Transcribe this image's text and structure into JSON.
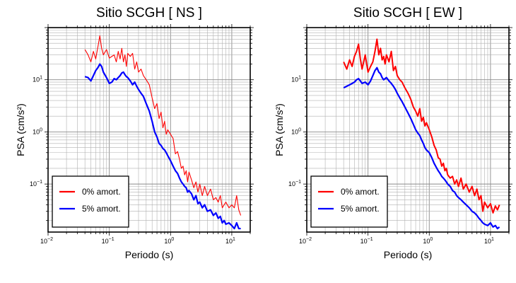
{
  "chart_data": [
    {
      "type": "line",
      "title": "Sitio SCGH [ NS ]",
      "xlabel": "Periodo (s)",
      "ylabel": "PSA (cm/s²)",
      "xscale": "log",
      "yscale": "log",
      "xlim": [
        0.01,
        20
      ],
      "ylim": [
        0.012,
        100
      ],
      "x_ticks": [
        {
          "base": "10",
          "exp": "−2"
        },
        {
          "base": "10",
          "exp": "−1"
        },
        {
          "base": "10",
          "exp": "0"
        },
        {
          "base": "10",
          "exp": "1"
        }
      ],
      "y_ticks": [
        {
          "base": "10",
          "exp": "−1"
        },
        {
          "base": "10",
          "exp": "0"
        },
        {
          "base": "10",
          "exp": "1"
        }
      ],
      "grid": true,
      "legend_position": "bottom-left",
      "series": [
        {
          "name": "0% amort.",
          "color": "#ff0000",
          "x": [
            0.04,
            0.045,
            0.05,
            0.055,
            0.06,
            0.065,
            0.07,
            0.075,
            0.08,
            0.09,
            0.1,
            0.11,
            0.12,
            0.13,
            0.14,
            0.15,
            0.16,
            0.17,
            0.18,
            0.19,
            0.2,
            0.22,
            0.24,
            0.26,
            0.28,
            0.3,
            0.33,
            0.36,
            0.4,
            0.45,
            0.5,
            0.55,
            0.6,
            0.65,
            0.7,
            0.75,
            0.8,
            0.85,
            0.9,
            1.0,
            1.1,
            1.2,
            1.3,
            1.4,
            1.5,
            1.6,
            1.7,
            1.8,
            1.9,
            2.0,
            2.2,
            2.4,
            2.6,
            2.8,
            3.0,
            3.3,
            3.6,
            4.0,
            4.5,
            5.0,
            5.5,
            6.0,
            6.5,
            7.0,
            7.5,
            8.0,
            9.0,
            10.0,
            11.0,
            12.0,
            13.0,
            14.0
          ],
          "values": [
            38,
            30,
            22,
            35,
            25,
            42,
            70,
            40,
            30,
            38,
            26,
            28,
            30,
            22,
            35,
            25,
            40,
            22,
            30,
            18,
            32,
            28,
            32,
            16,
            22,
            14,
            16,
            12,
            10,
            8,
            4.5,
            2.8,
            3.5,
            1.8,
            2.4,
            1.2,
            1.6,
            0.9,
            1.1,
            0.9,
            0.75,
            0.38,
            0.42,
            0.3,
            0.2,
            0.22,
            0.15,
            0.18,
            0.11,
            0.17,
            0.12,
            0.085,
            0.11,
            0.07,
            0.1,
            0.06,
            0.09,
            0.06,
            0.08,
            0.05,
            0.055,
            0.045,
            0.06,
            0.035,
            0.04,
            0.045,
            0.035,
            0.04,
            0.035,
            0.06,
            0.032,
            0.025
          ]
        },
        {
          "name": "5% amort.",
          "color": "#0000ff",
          "x": [
            0.04,
            0.045,
            0.05,
            0.055,
            0.06,
            0.065,
            0.07,
            0.075,
            0.08,
            0.09,
            0.1,
            0.11,
            0.12,
            0.13,
            0.14,
            0.15,
            0.16,
            0.17,
            0.18,
            0.19,
            0.2,
            0.22,
            0.24,
            0.26,
            0.28,
            0.3,
            0.33,
            0.36,
            0.4,
            0.45,
            0.5,
            0.55,
            0.6,
            0.65,
            0.7,
            0.75,
            0.8,
            0.85,
            0.9,
            1.0,
            1.1,
            1.2,
            1.3,
            1.4,
            1.5,
            1.6,
            1.7,
            1.8,
            1.9,
            2.0,
            2.2,
            2.4,
            2.6,
            2.8,
            3.0,
            3.3,
            3.6,
            4.0,
            4.5,
            5.0,
            5.5,
            6.0,
            6.5,
            7.0,
            7.5,
            8.0,
            9.0,
            10.0,
            11.0,
            12.0,
            13.0,
            14.0
          ],
          "values": [
            11.5,
            11,
            9.5,
            12,
            15,
            17,
            20,
            18,
            14,
            11,
            8.5,
            9,
            10.5,
            10,
            11,
            12,
            13.5,
            14,
            12.5,
            11.5,
            11,
            9.5,
            8,
            9,
            7.5,
            6.5,
            5.5,
            4.8,
            3.5,
            2.5,
            1.6,
            1.0,
            0.8,
            0.6,
            0.55,
            0.48,
            0.45,
            0.4,
            0.35,
            0.28,
            0.22,
            0.18,
            0.16,
            0.13,
            0.11,
            0.1,
            0.09,
            0.085,
            0.07,
            0.075,
            0.065,
            0.05,
            0.06,
            0.042,
            0.045,
            0.035,
            0.04,
            0.03,
            0.032,
            0.025,
            0.028,
            0.022,
            0.024,
            0.018,
            0.02,
            0.017,
            0.018,
            0.016,
            0.014,
            0.018,
            0.014,
            0.014
          ]
        }
      ]
    },
    {
      "type": "line",
      "title": "Sitio SCGH [ EW ]",
      "xlabel": "Periodo (s)",
      "ylabel": "PSA (cm/s²)",
      "xscale": "log",
      "yscale": "log",
      "xlim": [
        0.01,
        20
      ],
      "ylim": [
        0.012,
        100
      ],
      "x_ticks": [
        {
          "base": "10",
          "exp": "−2"
        },
        {
          "base": "10",
          "exp": "−1"
        },
        {
          "base": "10",
          "exp": "0"
        },
        {
          "base": "10",
          "exp": "1"
        }
      ],
      "y_ticks": [
        {
          "base": "10",
          "exp": "−1"
        },
        {
          "base": "10",
          "exp": "0"
        },
        {
          "base": "10",
          "exp": "1"
        }
      ],
      "grid": true,
      "legend_position": "bottom-left",
      "series": [
        {
          "name": "0% amort.",
          "color": "#ff0000",
          "x": [
            0.04,
            0.045,
            0.05,
            0.055,
            0.06,
            0.065,
            0.07,
            0.075,
            0.08,
            0.09,
            0.1,
            0.11,
            0.12,
            0.13,
            0.14,
            0.15,
            0.16,
            0.17,
            0.18,
            0.19,
            0.2,
            0.22,
            0.24,
            0.26,
            0.28,
            0.3,
            0.33,
            0.36,
            0.4,
            0.45,
            0.5,
            0.55,
            0.6,
            0.65,
            0.7,
            0.75,
            0.8,
            0.85,
            0.9,
            1.0,
            1.1,
            1.2,
            1.3,
            1.4,
            1.5,
            1.6,
            1.7,
            1.8,
            1.9,
            2.0,
            2.2,
            2.4,
            2.6,
            2.8,
            3.0,
            3.3,
            3.6,
            4.0,
            4.5,
            5.0,
            5.5,
            6.0,
            6.5,
            7.0,
            7.5,
            8.0,
            9.0,
            10.0,
            11.0,
            12.0,
            13.0,
            14.0
          ],
          "values": [
            22,
            16,
            24,
            18,
            28,
            35,
            48,
            25,
            16,
            30,
            14,
            18,
            22,
            35,
            60,
            30,
            40,
            24,
            28,
            20,
            30,
            22,
            35,
            15,
            18,
            12,
            10,
            9,
            7,
            5.5,
            4.2,
            3.0,
            2.5,
            2.0,
            2.8,
            1.6,
            1.9,
            1.3,
            1.5,
            1.1,
            0.8,
            0.55,
            0.45,
            0.32,
            0.3,
            0.22,
            0.25,
            0.18,
            0.2,
            0.15,
            0.13,
            0.14,
            0.1,
            0.12,
            0.09,
            0.13,
            0.08,
            0.1,
            0.07,
            0.09,
            0.06,
            0.08,
            0.05,
            0.06,
            0.03,
            0.045,
            0.035,
            0.042,
            0.028,
            0.038,
            0.032,
            0.04
          ]
        },
        {
          "name": "5% amort.",
          "color": "#0000ff",
          "x": [
            0.04,
            0.045,
            0.05,
            0.055,
            0.06,
            0.065,
            0.07,
            0.075,
            0.08,
            0.09,
            0.1,
            0.11,
            0.12,
            0.13,
            0.14,
            0.15,
            0.16,
            0.17,
            0.18,
            0.19,
            0.2,
            0.22,
            0.24,
            0.26,
            0.28,
            0.3,
            0.33,
            0.36,
            0.4,
            0.45,
            0.5,
            0.55,
            0.6,
            0.65,
            0.7,
            0.75,
            0.8,
            0.85,
            0.9,
            1.0,
            1.1,
            1.2,
            1.3,
            1.4,
            1.5,
            1.6,
            1.7,
            1.8,
            1.9,
            2.0,
            2.2,
            2.4,
            2.6,
            2.8,
            3.0,
            3.3,
            3.6,
            4.0,
            4.5,
            5.0,
            5.5,
            6.0,
            6.5,
            7.0,
            7.5,
            8.0,
            9.0,
            10.0,
            11.0,
            12.0,
            13.0,
            14.0
          ],
          "values": [
            7,
            7.5,
            8,
            8.5,
            9,
            10,
            10.5,
            9.5,
            8.5,
            9,
            8,
            9.5,
            12,
            15,
            17,
            14,
            13,
            11,
            10,
            10.5,
            11,
            9.5,
            8.5,
            7.5,
            6.5,
            5.5,
            4.5,
            3.8,
            3.0,
            2.3,
            1.8,
            1.4,
            1.1,
            0.95,
            0.85,
            0.7,
            0.6,
            0.5,
            0.45,
            0.4,
            0.32,
            0.25,
            0.21,
            0.18,
            0.16,
            0.14,
            0.13,
            0.12,
            0.11,
            0.1,
            0.09,
            0.075,
            0.07,
            0.06,
            0.055,
            0.05,
            0.045,
            0.04,
            0.035,
            0.03,
            0.028,
            0.025,
            0.022,
            0.02,
            0.018,
            0.017,
            0.016,
            0.018,
            0.015,
            0.016,
            0.014,
            0.015
          ]
        }
      ]
    }
  ]
}
